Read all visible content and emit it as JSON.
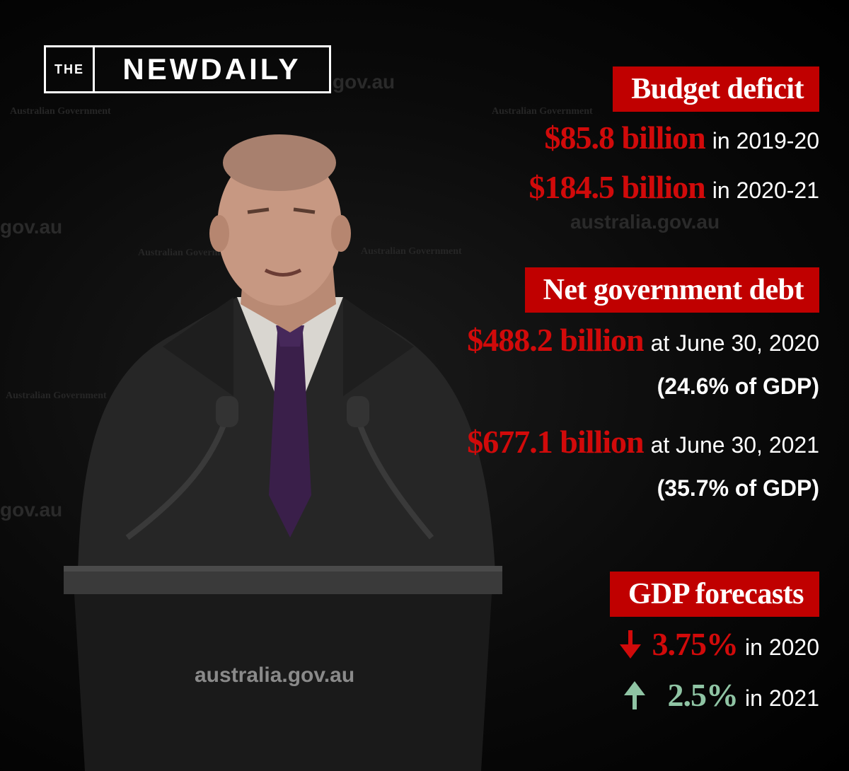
{
  "logo": {
    "prefix": "THE",
    "name": "NEWDAILY"
  },
  "backdrop": {
    "url_text": "australia.gov.au",
    "url_fragment_a": "gov.au",
    "url_fragment_b": "australia.gov.au",
    "url_fragment_c": "gov.au",
    "gov_text": "Australian Government",
    "podium_text": "australia.gov.au"
  },
  "budget_deficit": {
    "heading": "Budget deficit",
    "lines": [
      {
        "amount": "$85.8 billion",
        "period": "in 2019-20"
      },
      {
        "amount": "$184.5 billion",
        "period": "in 2020-21"
      }
    ]
  },
  "net_debt": {
    "heading": "Net government debt",
    "lines": [
      {
        "amount": "$488.2 billion",
        "period": "at June 30, 2020",
        "share": "(24.6% of GDP)"
      },
      {
        "amount": "$677.1 billion",
        "period": "at June 30, 2021",
        "share": "(35.7% of GDP)"
      }
    ]
  },
  "gdp_forecasts": {
    "heading": "GDP forecasts",
    "lines": [
      {
        "direction_icon": "arrow-down-icon",
        "value": "3.75%",
        "period": "in 2020",
        "color": "#d10a0a"
      },
      {
        "direction_icon": "arrow-up-icon",
        "value": "2.5%",
        "period": "in 2021",
        "color": "#8fc4a4"
      }
    ]
  },
  "colors": {
    "accent_red": "#c00000",
    "down_red": "#d10a0a",
    "up_green": "#8fc4a4"
  }
}
